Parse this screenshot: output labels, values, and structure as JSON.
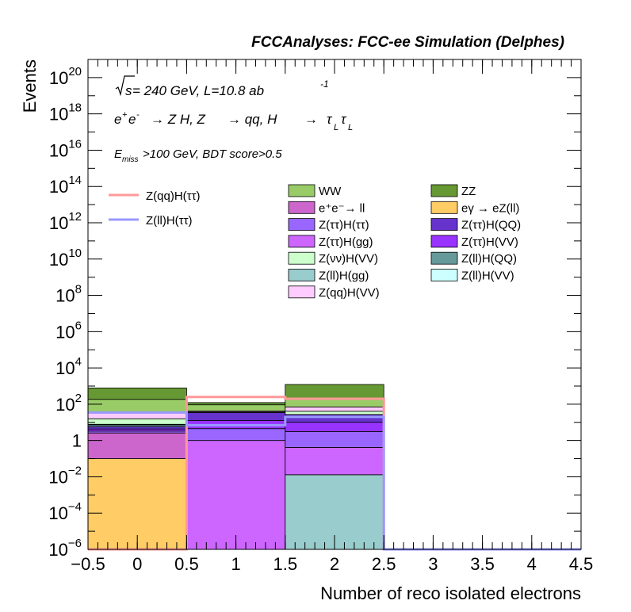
{
  "chart_data": {
    "type": "bar",
    "stacked": true,
    "header": "FCCAnalyses: FCC-ee Simulation (Delphes)",
    "xlabel": "Number of reco isolated electrons",
    "ylabel": "Events",
    "log_y": true,
    "xlim": [
      -0.5,
      4.5
    ],
    "ylim": [
      1e-06,
      1e+21
    ],
    "x_ticks": [
      "−0.5",
      "0",
      "0.5",
      "1",
      "1.5",
      "2",
      "2.5",
      "3",
      "3.5",
      "4",
      "4.5"
    ],
    "y_ticks": [
      {
        "base": "10",
        "exp": "−6"
      },
      {
        "base": "10",
        "exp": "−4"
      },
      {
        "base": "10",
        "exp": "−2"
      },
      {
        "base": "1",
        "exp": ""
      },
      {
        "base": "10",
        "exp": "2"
      },
      {
        "base": "10",
        "exp": "4"
      },
      {
        "base": "10",
        "exp": "6"
      },
      {
        "base": "10",
        "exp": "8"
      },
      {
        "base": "10",
        "exp": "10"
      },
      {
        "base": "10",
        "exp": "12"
      },
      {
        "base": "10",
        "exp": "14"
      },
      {
        "base": "10",
        "exp": "16"
      },
      {
        "base": "10",
        "exp": "18"
      },
      {
        "base": "10",
        "exp": "20"
      }
    ],
    "bins": [
      [
        -0.5,
        0.5
      ],
      [
        0.5,
        1.5
      ],
      [
        1.5,
        2.5
      ],
      [
        2.5,
        3.5
      ],
      [
        3.5,
        4.5
      ]
    ],
    "annotations": {
      "sqrt_s": "s",
      "energy_lumi": " = 240 GeV, L=10.8 ab",
      "lumi_exp": "-1",
      "process": {
        "e": "e",
        "plus": "+",
        "minus": "-",
        "arrow1": "→ Z H, Z",
        "arrow2": "→ qq, H",
        "arrow3": "→",
        "tau": "τ",
        "sub": "L"
      },
      "cut": {
        "e": "E",
        "sub": "miss",
        "rest": ">100 GeV, BDT score>0.5"
      }
    },
    "stack_series": [
      {
        "name": "eγ → eZ(ll)",
        "color": "#ffcc66",
        "values": [
          0.1,
          0,
          0,
          0,
          0
        ]
      },
      {
        "name": "Z(ll)H(gg)",
        "color": "#99cccc",
        "values": [
          0,
          0,
          0.013,
          0,
          0
        ]
      },
      {
        "name": "Z(ττ)H(gg)",
        "color": "#cc66ff",
        "values": [
          0,
          1.0,
          0.4,
          0,
          0
        ]
      },
      {
        "name": "e⁺e⁻→ ll",
        "color": "#cc66cc",
        "values": [
          2.5,
          0,
          0,
          0,
          0
        ]
      },
      {
        "name": "Z(ττ)H(ττ)",
        "color": "#9966ff",
        "values": [
          0.7,
          3.5,
          2.7,
          0,
          0
        ]
      },
      {
        "name": "Z(ττ)H(VV)",
        "color": "#9933ff",
        "values": [
          1.0,
          8,
          7,
          0,
          0
        ]
      },
      {
        "name": "Z(ττ)H(QQ)",
        "color": "#6633cc",
        "values": [
          1.5,
          22,
          17,
          0,
          0
        ]
      },
      {
        "name": "Z(ll)H(QQ)",
        "color": "#669999",
        "values": [
          1.5,
          0,
          0,
          0,
          0
        ]
      },
      {
        "name": "Z(ll)H(VV)",
        "color": "#ccffff",
        "values": [
          0.5,
          0,
          0,
          0,
          0
        ]
      },
      {
        "name": "Z(νν)H(VV)",
        "color": "#ccffcc",
        "values": [
          8,
          3,
          14,
          0,
          0
        ]
      },
      {
        "name": "Z(qq)H(VV)",
        "color": "#ffccff",
        "values": [
          20,
          5,
          30,
          0,
          0
        ]
      },
      {
        "name": "WW",
        "color": "#99cc66",
        "values": [
          150,
          50,
          150,
          0,
          0
        ]
      },
      {
        "name": "ZZ",
        "color": "#669933",
        "values": [
          600,
          30,
          1000,
          0,
          0
        ]
      }
    ],
    "line_series": [
      {
        "name": "Z(qq)H(ττ)",
        "color": "#ff9999",
        "values": [
          1e-06,
          250,
          200,
          1e-06,
          1e-06
        ]
      },
      {
        "name": "Z(ll)H(ττ)",
        "color": "#9999ff",
        "values": [
          35,
          7,
          20,
          1e-06,
          1e-06
        ]
      }
    ],
    "legend_columns": [
      [
        "WW",
        "e⁺e⁻→ ll",
        "Z(ττ)H(ττ)",
        "Z(ττ)H(gg)",
        "Z(νν)H(VV)",
        "Z(ll)H(gg)",
        "Z(qq)H(VV)"
      ],
      [
        "ZZ",
        "eγ → eZ(ll)",
        "Z(ττ)H(QQ)",
        "Z(ττ)H(VV)",
        "Z(ll)H(QQ)",
        "Z(ll)H(VV)"
      ]
    ]
  }
}
